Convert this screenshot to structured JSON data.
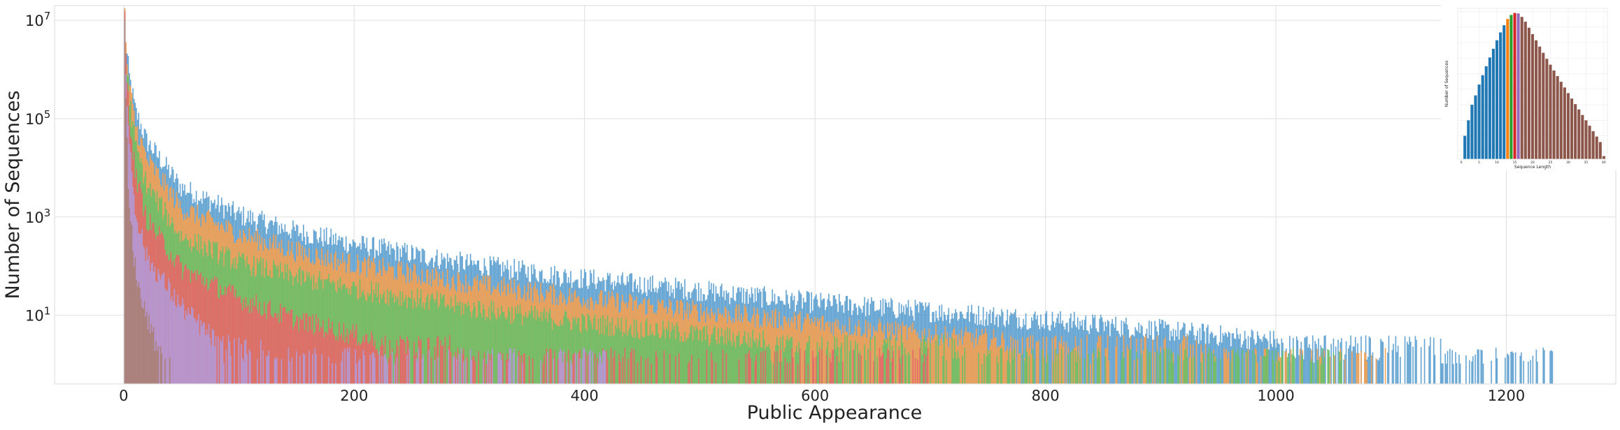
{
  "chart_data": [
    {
      "type": "bar",
      "xlabel": "Public Appearance",
      "ylabel": "Number of Sequences",
      "yscale": "log",
      "xlim": [
        -60,
        1295
      ],
      "ylim": [
        0.4,
        20000000
      ],
      "x_ticks": [
        0,
        200,
        400,
        600,
        800,
        1000,
        1200
      ],
      "x_tick_labels": [
        "0",
        "200",
        "400",
        "600",
        "800",
        "1000",
        "1200"
      ],
      "y_tick_labels": [
        {
          "value": 10,
          "base": "10",
          "exp": "1"
        },
        {
          "value": 1000,
          "base": "10",
          "exp": "3"
        },
        {
          "value": 100000,
          "base": "10",
          "exp": "5"
        },
        {
          "value": 10000000,
          "base": "10",
          "exp": "7"
        }
      ],
      "grid": true,
      "legend": "none",
      "series": [
        {
          "color": "#5b9fd0",
          "decay": [
            [
              1,
              15000000
            ],
            [
              2,
              3000000
            ],
            [
              5,
              700000
            ],
            [
              10,
              150000
            ],
            [
              20,
              35000
            ],
            [
              50,
              4000
            ],
            [
              100,
              1100
            ],
            [
              150,
              500
            ],
            [
              200,
              280
            ],
            [
              300,
              110
            ],
            [
              400,
              55
            ],
            [
              500,
              32
            ],
            [
              600,
              18
            ],
            [
              700,
              12
            ],
            [
              800,
              8
            ],
            [
              900,
              5
            ],
            [
              1000,
              3
            ],
            [
              1100,
              1.8
            ],
            [
              1240,
              1
            ]
          ],
          "max_x": 1240
        },
        {
          "color": "#f5a050",
          "decay": [
            [
              1,
              15000000
            ],
            [
              2,
              2500000
            ],
            [
              5,
              450000
            ],
            [
              10,
              80000
            ],
            [
              20,
              15000
            ],
            [
              50,
              1500
            ],
            [
              100,
              450
            ],
            [
              150,
              200
            ],
            [
              200,
              110
            ],
            [
              300,
              45
            ],
            [
              400,
              22
            ],
            [
              500,
              12
            ],
            [
              600,
              7
            ],
            [
              700,
              4
            ],
            [
              800,
              2.6
            ],
            [
              900,
              1.8
            ],
            [
              1000,
              1.2
            ],
            [
              1100,
              1
            ]
          ],
          "max_x": 1100
        },
        {
          "color": "#6cc068",
          "decay": [
            [
              1,
              14000000
            ],
            [
              2,
              2000000
            ],
            [
              5,
              250000
            ],
            [
              10,
              30000
            ],
            [
              20,
              4500
            ],
            [
              50,
              400
            ],
            [
              100,
              120
            ],
            [
              150,
              60
            ],
            [
              200,
              35
            ],
            [
              300,
              14
            ],
            [
              400,
              7
            ],
            [
              500,
              4
            ],
            [
              600,
              2.5
            ],
            [
              700,
              1.6
            ],
            [
              800,
              1.2
            ],
            [
              900,
              1
            ]
          ],
          "max_x": 1060
        },
        {
          "color": "#e8686a",
          "decay": [
            [
              1,
              12000000
            ],
            [
              2,
              1500000
            ],
            [
              5,
              120000
            ],
            [
              10,
              8000
            ],
            [
              20,
              900
            ],
            [
              50,
              90
            ],
            [
              100,
              22
            ],
            [
              150,
              8
            ],
            [
              200,
              4
            ],
            [
              250,
              2
            ],
            [
              300,
              1.3
            ],
            [
              350,
              1
            ]
          ],
          "max_x": 700
        },
        {
          "color": "#b49ad8",
          "decay": [
            [
              1,
              10000000
            ],
            [
              2,
              800000
            ],
            [
              5,
              30000
            ],
            [
              10,
              1500
            ],
            [
              20,
              150
            ],
            [
              50,
              15
            ],
            [
              80,
              3
            ],
            [
              120,
              1.5
            ],
            [
              160,
              1
            ]
          ],
          "max_x": 420
        },
        {
          "color": "#a98074",
          "decay": [
            [
              1,
              6000000
            ],
            [
              2,
              200000
            ],
            [
              4,
              4000
            ],
            [
              8,
              200
            ],
            [
              15,
              20
            ],
            [
              25,
              4
            ],
            [
              35,
              1
            ]
          ],
          "max_x": 40
        }
      ]
    },
    {
      "type": "bar",
      "xlabel": "Sequence Length",
      "ylabel": "Number of Sequences",
      "yscale": "log",
      "x_tick_labels": [
        "0",
        "5",
        "10",
        "15",
        "20",
        "25",
        "30",
        "35",
        "40"
      ],
      "lengths": [
        1,
        2,
        3,
        4,
        5,
        6,
        7,
        8,
        9,
        10,
        11,
        12,
        13,
        14,
        15,
        16,
        17,
        18,
        19,
        20,
        21,
        22,
        23,
        24,
        25,
        26,
        27,
        28,
        29,
        30,
        31,
        32,
        33,
        34,
        35,
        36,
        37,
        38,
        39,
        40
      ],
      "values": [
        1000,
        10000,
        100000,
        400000,
        2000000,
        8000000,
        30000000,
        110000000,
        400000000,
        1400000000,
        4500000000,
        13000000000,
        33000000000,
        60000000000,
        80000000000,
        75000000000,
        45000000000,
        22000000000,
        9000000000,
        3500000000,
        1400000000,
        550000000,
        220000000,
        90000000,
        38000000,
        16000000,
        7000000,
        3000000,
        1300000,
        560000,
        250000,
        110000,
        50000,
        22000,
        10000,
        4500,
        2000,
        900,
        400,
        50
      ],
      "colors": [
        "#1f77b4",
        "#1f77b4",
        "#1f77b4",
        "#1f77b4",
        "#1f77b4",
        "#1f77b4",
        "#1f77b4",
        "#1f77b4",
        "#1f77b4",
        "#1f77b4",
        "#1f77b4",
        "#1f77b4",
        "#ff7f0e",
        "#2ca02c",
        "#d62728",
        "#9467bd",
        "#8c564b",
        "#8c564b",
        "#8c564b",
        "#8c564b",
        "#8c564b",
        "#8c564b",
        "#8c564b",
        "#8c564b",
        "#8c564b",
        "#8c564b",
        "#8c564b",
        "#8c564b",
        "#8c564b",
        "#8c564b",
        "#8c564b",
        "#8c564b",
        "#8c564b",
        "#8c564b",
        "#8c564b",
        "#8c564b",
        "#8c564b",
        "#8c564b",
        "#8c564b",
        "#8c564b"
      ],
      "grid": true
    }
  ]
}
